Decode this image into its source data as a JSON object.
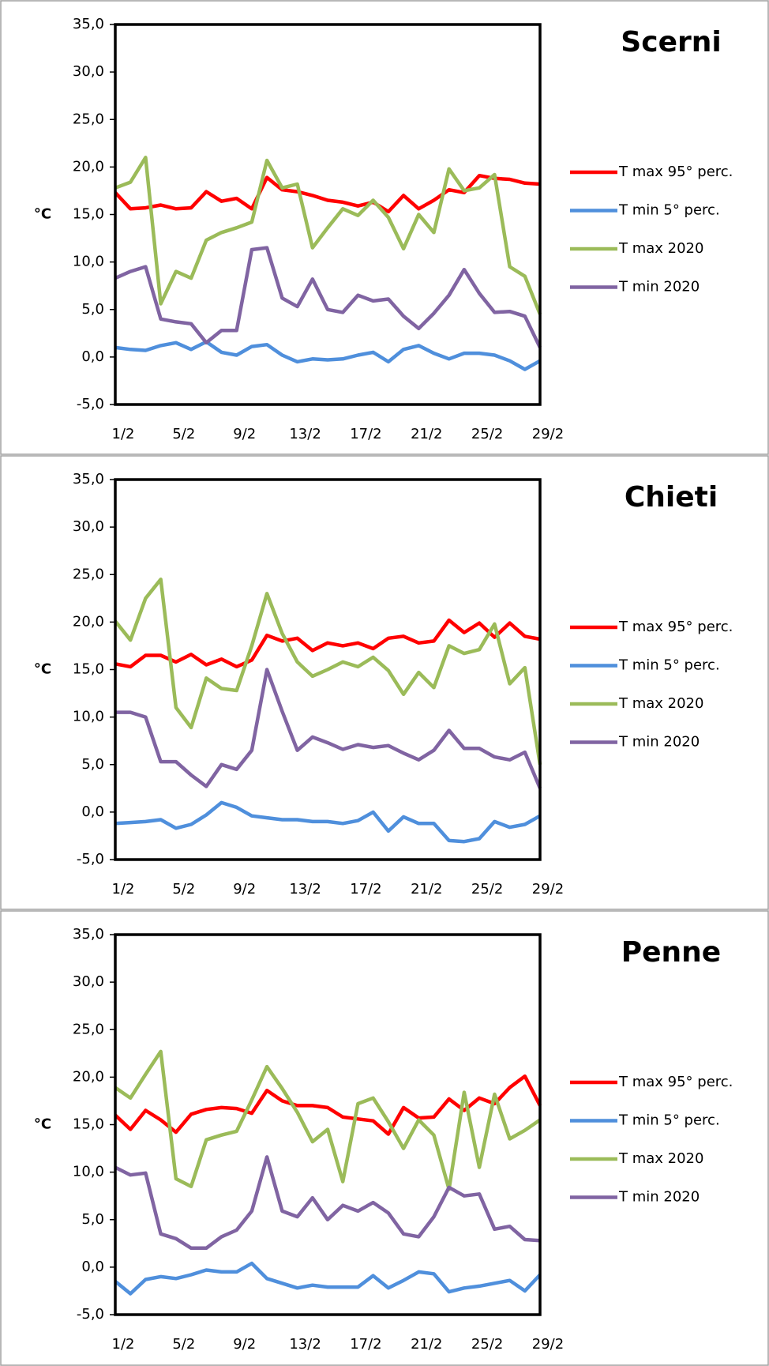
{
  "chart_data": [
    {
      "type": "line",
      "title": "Scerni",
      "y_label": "°C",
      "categories": [
        "1/2",
        null,
        null,
        null,
        "5/2",
        null,
        null,
        null,
        "9/2",
        null,
        null,
        null,
        "13/2",
        null,
        null,
        null,
        "17/2",
        null,
        null,
        null,
        "21/2",
        null,
        null,
        null,
        "25/2",
        null,
        null,
        null,
        "29/2"
      ],
      "series": [
        {
          "name": "T max 95° perc.",
          "color": "#ff0000",
          "values": [
            17.3,
            15.6,
            15.7,
            16.0,
            15.6,
            15.7,
            17.4,
            16.4,
            16.7,
            15.6,
            18.9,
            17.6,
            17.4,
            17.0,
            16.5,
            16.3,
            15.9,
            16.3,
            15.3,
            17.0,
            15.6,
            16.5,
            17.6,
            17.3,
            19.1,
            18.8,
            18.7,
            18.3,
            18.2
          ]
        },
        {
          "name": "T min 5° perc.",
          "color": "#4f8fdc",
          "values": [
            1.0,
            0.8,
            0.7,
            1.2,
            1.5,
            0.8,
            1.6,
            0.5,
            0.2,
            1.1,
            1.3,
            0.2,
            -0.5,
            -0.2,
            -0.3,
            -0.2,
            0.2,
            0.5,
            -0.5,
            0.8,
            1.2,
            0.4,
            -0.2,
            0.4,
            0.4,
            0.2,
            -0.4,
            -1.3,
            -0.4
          ]
        },
        {
          "name": "T max 2020",
          "color": "#9bbb59",
          "values": [
            17.8,
            18.4,
            21.0,
            5.6,
            9.0,
            8.3,
            12.3,
            13.1,
            13.6,
            14.2,
            20.7,
            17.8,
            18.2,
            11.5,
            13.6,
            15.6,
            14.9,
            16.5,
            14.7,
            11.4,
            15.0,
            13.1,
            19.8,
            17.5,
            17.8,
            19.2,
            9.5,
            8.5,
            4.5
          ]
        },
        {
          "name": "T min 2020",
          "color": "#8064a2",
          "values": [
            8.3,
            9.0,
            9.5,
            4.0,
            3.7,
            3.5,
            1.5,
            2.8,
            2.8,
            11.3,
            11.5,
            6.2,
            5.3,
            8.2,
            5.0,
            4.7,
            6.5,
            5.9,
            6.1,
            4.3,
            3.0,
            4.6,
            6.5,
            9.2,
            6.7,
            4.7,
            4.8,
            4.3,
            1.0
          ]
        }
      ],
      "ylim": [
        -5,
        35
      ],
      "yticks": [
        {
          "value": -5,
          "label": "-5,0"
        },
        {
          "value": 0,
          "label": "0,0"
        },
        {
          "value": 5,
          "label": "5,0"
        },
        {
          "value": 10,
          "label": "10,0"
        },
        {
          "value": 15,
          "label": "15,0"
        },
        {
          "value": 20,
          "label": "20,0"
        },
        {
          "value": 25,
          "label": "25,0"
        },
        {
          "value": 30,
          "label": "30,0"
        },
        {
          "value": 35,
          "label": "35,0"
        }
      ],
      "legend": "right"
    },
    {
      "type": "line",
      "title": "Chieti",
      "y_label": "°C",
      "categories": [
        "1/2",
        null,
        null,
        null,
        "5/2",
        null,
        null,
        null,
        "9/2",
        null,
        null,
        null,
        "13/2",
        null,
        null,
        null,
        "17/2",
        null,
        null,
        null,
        "21/2",
        null,
        null,
        null,
        "25/2",
        null,
        null,
        null,
        "29/2"
      ],
      "series": [
        {
          "name": "T max 95° perc.",
          "color": "#ff0000",
          "values": [
            15.6,
            15.3,
            16.5,
            16.5,
            15.8,
            16.6,
            15.5,
            16.1,
            15.3,
            16.0,
            18.6,
            18.0,
            18.3,
            17.0,
            17.8,
            17.5,
            17.8,
            17.2,
            18.3,
            18.5,
            17.8,
            18.0,
            20.2,
            18.9,
            19.9,
            18.4,
            19.9,
            18.5,
            18.2
          ]
        },
        {
          "name": "T min 5° perc.",
          "color": "#4f8fdc",
          "values": [
            -1.2,
            -1.1,
            -1.0,
            -0.8,
            -1.7,
            -1.3,
            -0.3,
            1.0,
            0.5,
            -0.4,
            -0.6,
            -0.8,
            -0.8,
            -1.0,
            -1.0,
            -1.2,
            -0.9,
            0.0,
            -2.0,
            -0.5,
            -1.2,
            -1.2,
            -3.0,
            -3.1,
            -2.8,
            -1.0,
            -1.6,
            -1.3,
            -0.4
          ]
        },
        {
          "name": "T max 2020",
          "color": "#9bbb59",
          "values": [
            20.1,
            18.1,
            22.5,
            24.5,
            11.0,
            8.9,
            14.1,
            13.0,
            12.8,
            17.5,
            23.0,
            18.8,
            15.8,
            14.3,
            15.0,
            15.8,
            15.3,
            16.3,
            14.9,
            12.4,
            14.7,
            13.1,
            17.5,
            16.7,
            17.1,
            19.8,
            13.5,
            15.2,
            5.0
          ]
        },
        {
          "name": "T min 2020",
          "color": "#8064a2",
          "values": [
            10.5,
            10.5,
            10.0,
            5.3,
            5.3,
            3.9,
            2.7,
            5.0,
            4.5,
            6.5,
            15.0,
            10.6,
            6.5,
            7.9,
            7.3,
            6.6,
            7.1,
            6.8,
            7.0,
            6.2,
            5.5,
            6.5,
            8.6,
            6.7,
            6.7,
            5.8,
            5.5,
            6.3,
            2.5
          ]
        }
      ],
      "ylim": [
        -5,
        35
      ],
      "yticks": [
        {
          "value": -5,
          "label": "-5,0"
        },
        {
          "value": 0,
          "label": "0,0"
        },
        {
          "value": 5,
          "label": "5,0"
        },
        {
          "value": 10,
          "label": "10,0"
        },
        {
          "value": 15,
          "label": "15,0"
        },
        {
          "value": 20,
          "label": "20,0"
        },
        {
          "value": 25,
          "label": "25,0"
        },
        {
          "value": 30,
          "label": "30,0"
        },
        {
          "value": 35,
          "label": "35,0"
        }
      ],
      "legend": "right"
    },
    {
      "type": "line",
      "title": "Penne",
      "y_label": "°C",
      "categories": [
        "1/2",
        null,
        null,
        null,
        "5/2",
        null,
        null,
        null,
        "9/2",
        null,
        null,
        null,
        "13/2",
        null,
        null,
        null,
        "17/2",
        null,
        null,
        null,
        "21/2",
        null,
        null,
        null,
        "25/2",
        null,
        null,
        null,
        "29/2"
      ],
      "series": [
        {
          "name": "T max 95° perc.",
          "color": "#ff0000",
          "values": [
            16.0,
            14.5,
            16.5,
            15.5,
            14.2,
            16.1,
            16.6,
            16.8,
            16.7,
            16.2,
            18.6,
            17.5,
            17.0,
            17.0,
            16.8,
            15.8,
            15.6,
            15.4,
            14.0,
            16.8,
            15.7,
            15.8,
            17.7,
            16.5,
            17.8,
            17.2,
            18.9,
            20.1,
            17.0
          ]
        },
        {
          "name": "T min 5° perc.",
          "color": "#4f8fdc",
          "values": [
            -1.5,
            -2.8,
            -1.3,
            -1.0,
            -1.2,
            -0.8,
            -0.3,
            -0.5,
            -0.5,
            0.4,
            -1.2,
            -1.7,
            -2.2,
            -1.9,
            -2.1,
            -2.1,
            -2.1,
            -0.9,
            -2.2,
            -1.4,
            -0.5,
            -0.7,
            -2.6,
            -2.2,
            -2.0,
            -1.7,
            -1.4,
            -2.5,
            -0.8
          ]
        },
        {
          "name": "T max 2020",
          "color": "#9bbb59",
          "values": [
            18.9,
            17.8,
            20.3,
            22.7,
            9.3,
            8.5,
            13.4,
            13.9,
            14.3,
            17.6,
            21.1,
            18.8,
            16.3,
            13.2,
            14.5,
            9.0,
            17.2,
            17.8,
            15.3,
            12.5,
            15.5,
            13.9,
            8.2,
            18.4,
            10.5,
            18.2,
            13.5,
            14.4,
            15.5
          ]
        },
        {
          "name": "T min 2020",
          "color": "#8064a2",
          "values": [
            10.5,
            9.7,
            9.9,
            3.5,
            3.0,
            2.0,
            2.0,
            3.2,
            3.9,
            5.9,
            11.6,
            5.9,
            5.3,
            7.3,
            5.0,
            6.5,
            5.9,
            6.8,
            5.7,
            3.5,
            3.2,
            5.3,
            8.4,
            7.5,
            7.7,
            4.0,
            4.3,
            2.9,
            2.8
          ]
        }
      ],
      "ylim": [
        -5,
        35
      ],
      "yticks": [
        {
          "value": -5,
          "label": "-5,0"
        },
        {
          "value": 0,
          "label": "0,0"
        },
        {
          "value": 5,
          "label": "5,0"
        },
        {
          "value": 10,
          "label": "10,0"
        },
        {
          "value": 15,
          "label": "15,0"
        },
        {
          "value": 20,
          "label": "20,0"
        },
        {
          "value": 25,
          "label": "25,0"
        },
        {
          "value": 30,
          "label": "30,0"
        },
        {
          "value": 35,
          "label": "35,0"
        }
      ],
      "legend": "right"
    }
  ]
}
